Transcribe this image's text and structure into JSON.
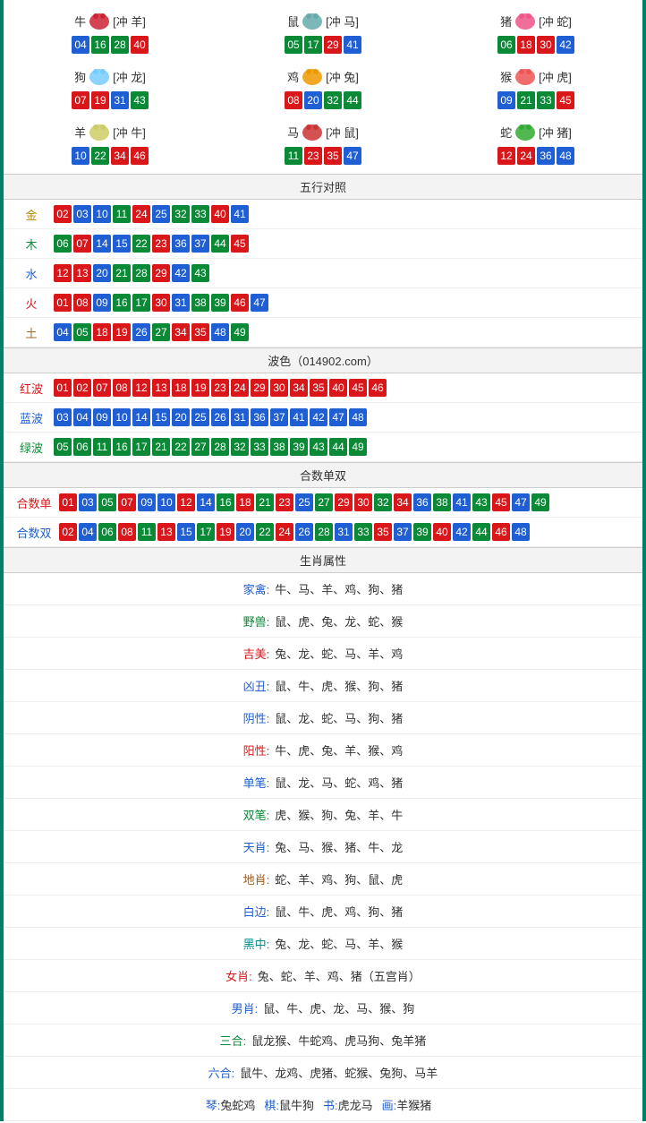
{
  "colors": {
    "red": "#d9171b",
    "blue": "#1f5fd3",
    "green": "#0a8a36",
    "border": "#008066",
    "section_bg": "#f3f3f3",
    "section_border": "#cccccc",
    "row_border": "#eeeeee"
  },
  "zodiac": [
    {
      "name": "牛",
      "chong": "[冲 羊]",
      "icon_color": "#c23",
      "nums": [
        {
          "v": "04",
          "c": "blue"
        },
        {
          "v": "16",
          "c": "green"
        },
        {
          "v": "28",
          "c": "green"
        },
        {
          "v": "40",
          "c": "red"
        }
      ]
    },
    {
      "name": "鼠",
      "chong": "[冲 马]",
      "icon_color": "#6aa",
      "nums": [
        {
          "v": "05",
          "c": "green"
        },
        {
          "v": "17",
          "c": "green"
        },
        {
          "v": "29",
          "c": "red"
        },
        {
          "v": "41",
          "c": "blue"
        }
      ]
    },
    {
      "name": "猪",
      "chong": "[冲 蛇]",
      "icon_color": "#e58",
      "nums": [
        {
          "v": "06",
          "c": "green"
        },
        {
          "v": "18",
          "c": "red"
        },
        {
          "v": "30",
          "c": "red"
        },
        {
          "v": "42",
          "c": "blue"
        }
      ]
    },
    {
      "name": "狗",
      "chong": "[冲 龙]",
      "icon_color": "#7cf",
      "nums": [
        {
          "v": "07",
          "c": "red"
        },
        {
          "v": "19",
          "c": "red"
        },
        {
          "v": "31",
          "c": "blue"
        },
        {
          "v": "43",
          "c": "green"
        }
      ]
    },
    {
      "name": "鸡",
      "chong": "[冲 兔]",
      "icon_color": "#e90",
      "nums": [
        {
          "v": "08",
          "c": "red"
        },
        {
          "v": "20",
          "c": "blue"
        },
        {
          "v": "32",
          "c": "green"
        },
        {
          "v": "44",
          "c": "green"
        }
      ]
    },
    {
      "name": "猴",
      "chong": "[冲 虎]",
      "icon_color": "#e55",
      "nums": [
        {
          "v": "09",
          "c": "blue"
        },
        {
          "v": "21",
          "c": "green"
        },
        {
          "v": "33",
          "c": "green"
        },
        {
          "v": "45",
          "c": "red"
        }
      ]
    },
    {
      "name": "羊",
      "chong": "[冲 牛]",
      "icon_color": "#cc6",
      "nums": [
        {
          "v": "10",
          "c": "blue"
        },
        {
          "v": "22",
          "c": "green"
        },
        {
          "v": "34",
          "c": "red"
        },
        {
          "v": "46",
          "c": "red"
        }
      ]
    },
    {
      "name": "马",
      "chong": "[冲 鼠]",
      "icon_color": "#c33",
      "nums": [
        {
          "v": "11",
          "c": "green"
        },
        {
          "v": "23",
          "c": "red"
        },
        {
          "v": "35",
          "c": "red"
        },
        {
          "v": "47",
          "c": "blue"
        }
      ]
    },
    {
      "name": "蛇",
      "chong": "[冲 猪]",
      "icon_color": "#3a3",
      "nums": [
        {
          "v": "12",
          "c": "red"
        },
        {
          "v": "24",
          "c": "red"
        },
        {
          "v": "36",
          "c": "blue"
        },
        {
          "v": "48",
          "c": "blue"
        }
      ]
    }
  ],
  "sections": {
    "wuxing_title": "五行对照",
    "bose_title": "波色（014902.com）",
    "heshu_title": "合数单双",
    "shengxiao_title": "生肖属性"
  },
  "wuxing": [
    {
      "label": "金",
      "cls": "lbl-jin",
      "nums": [
        {
          "v": "02",
          "c": "red"
        },
        {
          "v": "03",
          "c": "blue"
        },
        {
          "v": "10",
          "c": "blue"
        },
        {
          "v": "11",
          "c": "green"
        },
        {
          "v": "24",
          "c": "red"
        },
        {
          "v": "25",
          "c": "blue"
        },
        {
          "v": "32",
          "c": "green"
        },
        {
          "v": "33",
          "c": "green"
        },
        {
          "v": "40",
          "c": "red"
        },
        {
          "v": "41",
          "c": "blue"
        }
      ]
    },
    {
      "label": "木",
      "cls": "lbl-mu",
      "nums": [
        {
          "v": "06",
          "c": "green"
        },
        {
          "v": "07",
          "c": "red"
        },
        {
          "v": "14",
          "c": "blue"
        },
        {
          "v": "15",
          "c": "blue"
        },
        {
          "v": "22",
          "c": "green"
        },
        {
          "v": "23",
          "c": "red"
        },
        {
          "v": "36",
          "c": "blue"
        },
        {
          "v": "37",
          "c": "blue"
        },
        {
          "v": "44",
          "c": "green"
        },
        {
          "v": "45",
          "c": "red"
        }
      ]
    },
    {
      "label": "水",
      "cls": "lbl-shui",
      "nums": [
        {
          "v": "12",
          "c": "red"
        },
        {
          "v": "13",
          "c": "red"
        },
        {
          "v": "20",
          "c": "blue"
        },
        {
          "v": "21",
          "c": "green"
        },
        {
          "v": "28",
          "c": "green"
        },
        {
          "v": "29",
          "c": "red"
        },
        {
          "v": "42",
          "c": "blue"
        },
        {
          "v": "43",
          "c": "green"
        }
      ]
    },
    {
      "label": "火",
      "cls": "lbl-huo",
      "nums": [
        {
          "v": "01",
          "c": "red"
        },
        {
          "v": "08",
          "c": "red"
        },
        {
          "v": "09",
          "c": "blue"
        },
        {
          "v": "16",
          "c": "green"
        },
        {
          "v": "17",
          "c": "green"
        },
        {
          "v": "30",
          "c": "red"
        },
        {
          "v": "31",
          "c": "blue"
        },
        {
          "v": "38",
          "c": "green"
        },
        {
          "v": "39",
          "c": "green"
        },
        {
          "v": "46",
          "c": "red"
        },
        {
          "v": "47",
          "c": "blue"
        }
      ]
    },
    {
      "label": "土",
      "cls": "lbl-tu",
      "nums": [
        {
          "v": "04",
          "c": "blue"
        },
        {
          "v": "05",
          "c": "green"
        },
        {
          "v": "18",
          "c": "red"
        },
        {
          "v": "19",
          "c": "red"
        },
        {
          "v": "26",
          "c": "blue"
        },
        {
          "v": "27",
          "c": "green"
        },
        {
          "v": "34",
          "c": "red"
        },
        {
          "v": "35",
          "c": "red"
        },
        {
          "v": "48",
          "c": "blue"
        },
        {
          "v": "49",
          "c": "green"
        }
      ]
    }
  ],
  "bose": [
    {
      "label": "红波",
      "cls": "lbl-hong",
      "nums": [
        {
          "v": "01",
          "c": "red"
        },
        {
          "v": "02",
          "c": "red"
        },
        {
          "v": "07",
          "c": "red"
        },
        {
          "v": "08",
          "c": "red"
        },
        {
          "v": "12",
          "c": "red"
        },
        {
          "v": "13",
          "c": "red"
        },
        {
          "v": "18",
          "c": "red"
        },
        {
          "v": "19",
          "c": "red"
        },
        {
          "v": "23",
          "c": "red"
        },
        {
          "v": "24",
          "c": "red"
        },
        {
          "v": "29",
          "c": "red"
        },
        {
          "v": "30",
          "c": "red"
        },
        {
          "v": "34",
          "c": "red"
        },
        {
          "v": "35",
          "c": "red"
        },
        {
          "v": "40",
          "c": "red"
        },
        {
          "v": "45",
          "c": "red"
        },
        {
          "v": "46",
          "c": "red"
        }
      ]
    },
    {
      "label": "蓝波",
      "cls": "lbl-lan",
      "nums": [
        {
          "v": "03",
          "c": "blue"
        },
        {
          "v": "04",
          "c": "blue"
        },
        {
          "v": "09",
          "c": "blue"
        },
        {
          "v": "10",
          "c": "blue"
        },
        {
          "v": "14",
          "c": "blue"
        },
        {
          "v": "15",
          "c": "blue"
        },
        {
          "v": "20",
          "c": "blue"
        },
        {
          "v": "25",
          "c": "blue"
        },
        {
          "v": "26",
          "c": "blue"
        },
        {
          "v": "31",
          "c": "blue"
        },
        {
          "v": "36",
          "c": "blue"
        },
        {
          "v": "37",
          "c": "blue"
        },
        {
          "v": "41",
          "c": "blue"
        },
        {
          "v": "42",
          "c": "blue"
        },
        {
          "v": "47",
          "c": "blue"
        },
        {
          "v": "48",
          "c": "blue"
        }
      ]
    },
    {
      "label": "绿波",
      "cls": "lbl-lv",
      "nums": [
        {
          "v": "05",
          "c": "green"
        },
        {
          "v": "06",
          "c": "green"
        },
        {
          "v": "11",
          "c": "green"
        },
        {
          "v": "16",
          "c": "green"
        },
        {
          "v": "17",
          "c": "green"
        },
        {
          "v": "21",
          "c": "green"
        },
        {
          "v": "22",
          "c": "green"
        },
        {
          "v": "27",
          "c": "green"
        },
        {
          "v": "28",
          "c": "green"
        },
        {
          "v": "32",
          "c": "green"
        },
        {
          "v": "33",
          "c": "green"
        },
        {
          "v": "38",
          "c": "green"
        },
        {
          "v": "39",
          "c": "green"
        },
        {
          "v": "43",
          "c": "green"
        },
        {
          "v": "44",
          "c": "green"
        },
        {
          "v": "49",
          "c": "green"
        }
      ]
    }
  ],
  "heshu": [
    {
      "label": "合数单",
      "cls": "lbl-dan",
      "nums": [
        {
          "v": "01",
          "c": "red"
        },
        {
          "v": "03",
          "c": "blue"
        },
        {
          "v": "05",
          "c": "green"
        },
        {
          "v": "07",
          "c": "red"
        },
        {
          "v": "09",
          "c": "blue"
        },
        {
          "v": "10",
          "c": "blue"
        },
        {
          "v": "12",
          "c": "red"
        },
        {
          "v": "14",
          "c": "blue"
        },
        {
          "v": "16",
          "c": "green"
        },
        {
          "v": "18",
          "c": "red"
        },
        {
          "v": "21",
          "c": "green"
        },
        {
          "v": "23",
          "c": "red"
        },
        {
          "v": "25",
          "c": "blue"
        },
        {
          "v": "27",
          "c": "green"
        },
        {
          "v": "29",
          "c": "red"
        },
        {
          "v": "30",
          "c": "red"
        },
        {
          "v": "32",
          "c": "green"
        },
        {
          "v": "34",
          "c": "red"
        },
        {
          "v": "36",
          "c": "blue"
        },
        {
          "v": "38",
          "c": "green"
        },
        {
          "v": "41",
          "c": "blue"
        },
        {
          "v": "43",
          "c": "green"
        },
        {
          "v": "45",
          "c": "red"
        },
        {
          "v": "47",
          "c": "blue"
        },
        {
          "v": "49",
          "c": "green"
        }
      ]
    },
    {
      "label": "合数双",
      "cls": "lbl-shuang",
      "nums": [
        {
          "v": "02",
          "c": "red"
        },
        {
          "v": "04",
          "c": "blue"
        },
        {
          "v": "06",
          "c": "green"
        },
        {
          "v": "08",
          "c": "red"
        },
        {
          "v": "11",
          "c": "green"
        },
        {
          "v": "13",
          "c": "red"
        },
        {
          "v": "15",
          "c": "blue"
        },
        {
          "v": "17",
          "c": "green"
        },
        {
          "v": "19",
          "c": "red"
        },
        {
          "v": "20",
          "c": "blue"
        },
        {
          "v": "22",
          "c": "green"
        },
        {
          "v": "24",
          "c": "red"
        },
        {
          "v": "26",
          "c": "blue"
        },
        {
          "v": "28",
          "c": "green"
        },
        {
          "v": "31",
          "c": "blue"
        },
        {
          "v": "33",
          "c": "green"
        },
        {
          "v": "35",
          "c": "red"
        },
        {
          "v": "37",
          "c": "blue"
        },
        {
          "v": "39",
          "c": "green"
        },
        {
          "v": "40",
          "c": "red"
        },
        {
          "v": "42",
          "c": "blue"
        },
        {
          "v": "44",
          "c": "green"
        },
        {
          "v": "46",
          "c": "red"
        },
        {
          "v": "48",
          "c": "blue"
        }
      ]
    }
  ],
  "shengxiao_attrs": [
    {
      "label": "家禽:",
      "lcls": "c-blue",
      "value": "牛、马、羊、鸡、狗、猪"
    },
    {
      "label": "野兽:",
      "lcls": "c-green",
      "value": "鼠、虎、兔、龙、蛇、猴"
    },
    {
      "label": "吉美:",
      "lcls": "c-red",
      "value": "兔、龙、蛇、马、羊、鸡"
    },
    {
      "label": "凶丑:",
      "lcls": "c-blue",
      "value": "鼠、牛、虎、猴、狗、猪"
    },
    {
      "label": "阴性:",
      "lcls": "c-blue",
      "value": "鼠、龙、蛇、马、狗、猪"
    },
    {
      "label": "阳性:",
      "lcls": "c-red",
      "value": "牛、虎、兔、羊、猴、鸡"
    },
    {
      "label": "单笔:",
      "lcls": "c-blue",
      "value": "鼠、龙、马、蛇、鸡、猪"
    },
    {
      "label": "双笔:",
      "lcls": "c-green",
      "value": "虎、猴、狗、兔、羊、牛"
    },
    {
      "label": "天肖:",
      "lcls": "c-blue",
      "value": "兔、马、猴、猪、牛、龙"
    },
    {
      "label": "地肖:",
      "lcls": "c-brown",
      "value": "蛇、羊、鸡、狗、鼠、虎"
    },
    {
      "label": "白边:",
      "lcls": "c-blue",
      "value": "鼠、牛、虎、鸡、狗、猪"
    },
    {
      "label": "黑中:",
      "lcls": "c-teal",
      "value": "兔、龙、蛇、马、羊、猴"
    },
    {
      "label": "女肖:",
      "lcls": "c-red",
      "value": "兔、蛇、羊、鸡、猪（五宫肖）"
    },
    {
      "label": "男肖:",
      "lcls": "c-blue",
      "value": "鼠、牛、虎、龙、马、猴、狗"
    },
    {
      "label": "三合:",
      "lcls": "c-green",
      "value": "鼠龙猴、牛蛇鸡、虎马狗、兔羊猪"
    },
    {
      "label": "六合:",
      "lcls": "c-blue",
      "value": "鼠牛、龙鸡、虎猪、蛇猴、兔狗、马羊"
    }
  ],
  "bottom_line": {
    "parts": [
      {
        "label": "琴:",
        "lcls": "c-blue",
        "value": "兔蛇鸡 "
      },
      {
        "label": "棋:",
        "lcls": "c-blue",
        "value": "鼠牛狗 "
      },
      {
        "label": "书:",
        "lcls": "c-blue",
        "value": "虎龙马 "
      },
      {
        "label": "画:",
        "lcls": "c-blue",
        "value": "羊猴猪"
      }
    ]
  }
}
